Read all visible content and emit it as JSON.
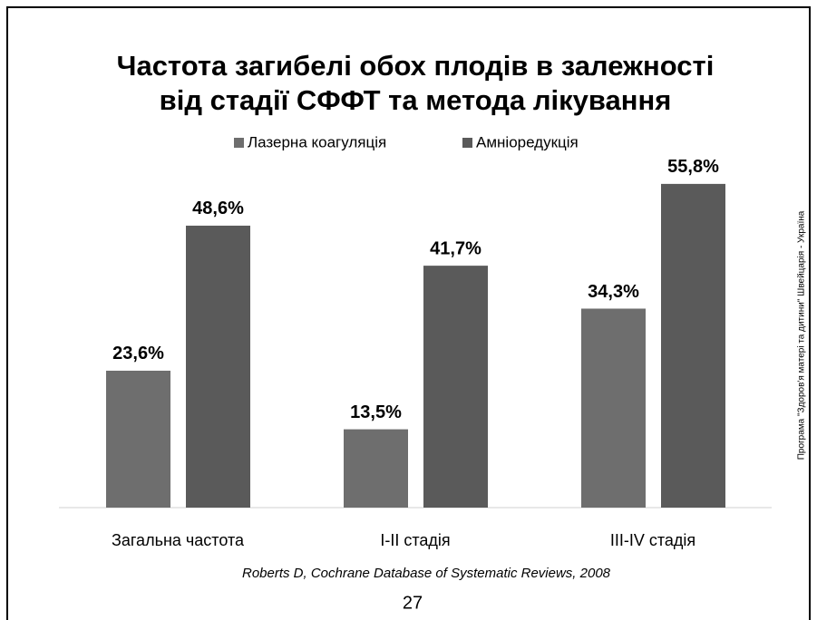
{
  "chart_data": {
    "type": "bar",
    "title": [
      "Частота загибелі обох плодів в залежності",
      "від стадії СФФТ та метода лікування"
    ],
    "categories": [
      "Загальна частота",
      "I-II стадія",
      "III-IV стадія"
    ],
    "series": [
      {
        "name": "Лазерна коагуляція",
        "color": "#6e6e6e",
        "values": [
          23.6,
          13.5,
          34.3
        ],
        "value_labels": [
          "23,6%",
          "13,5%",
          "34,3%"
        ]
      },
      {
        "name": "Амніоредукція",
        "color": "#5a5a5a",
        "values": [
          48.6,
          41.7,
          55.8
        ],
        "value_labels": [
          "48,6%",
          "41,7%",
          "55,8%"
        ]
      }
    ],
    "ylim": [
      0,
      60
    ],
    "legend": "top",
    "source": "Roberts D, Cochrane Database of Systematic Reviews, 2008",
    "page_number": "27",
    "side_note": "Програма \"Здоров'я матері та дитини\" Швейцарія - Україна"
  }
}
